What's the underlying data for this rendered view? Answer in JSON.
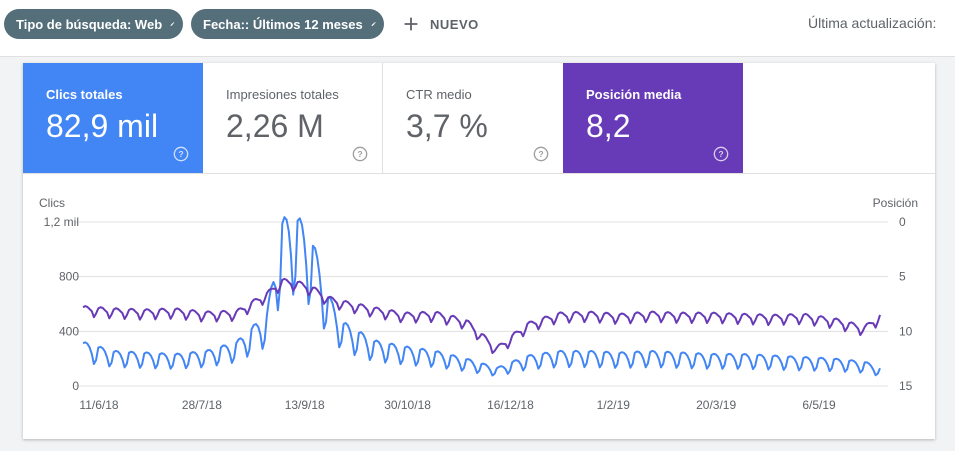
{
  "toolbar": {
    "chip_type_label": "Tipo de búsqueda: Web",
    "chip_date_label": "Fecha:: Últimos 12 meses",
    "new_label": "NUEVO",
    "last_update": "Última actualización: "
  },
  "metrics": {
    "clicks": {
      "label": "Clics totales",
      "value": "82,9 mil",
      "color": "#4285f4"
    },
    "impressions": {
      "label": "Impresiones totales",
      "value": "2,26 M"
    },
    "ctr": {
      "label": "CTR medio",
      "value": "3,7 %"
    },
    "position": {
      "label": "Posición media",
      "value": "8,2",
      "color": "#673ab7"
    }
  },
  "chart_data": {
    "type": "line",
    "y_left_label": "Clics",
    "y_right_label": "Posición",
    "y_left_ticks": [
      "1,2 mil",
      "800",
      "400",
      "0"
    ],
    "y_left_tick_values": [
      1200,
      800,
      400,
      0
    ],
    "y_left_range": [
      0,
      1200
    ],
    "y_right_ticks": [
      "0",
      "5",
      "10",
      "15"
    ],
    "y_right_tick_values": [
      0,
      5,
      10,
      15
    ],
    "y_right_range": [
      0,
      15
    ],
    "y_right_inverted": true,
    "x_ticks": [
      "11/6/18",
      "28/7/18",
      "13/9/18",
      "30/10/18",
      "16/12/18",
      "1/2/19",
      "20/3/19",
      "6/5/19"
    ],
    "x_start": "2018-06-11",
    "x_end": "2019-06-10",
    "grid": true,
    "series": [
      {
        "name": "Clics",
        "axis": "left",
        "color": "#4285f4",
        "points": [
          [
            "2018-06-11",
            290
          ],
          [
            "2018-06-25",
            230
          ],
          [
            "2018-07-09",
            220
          ],
          [
            "2018-07-23",
            210
          ],
          [
            "2018-08-06",
            230
          ],
          [
            "2018-08-20",
            290
          ],
          [
            "2018-09-03",
            480
          ],
          [
            "2018-09-10",
            1100
          ],
          [
            "2018-09-17",
            1120
          ],
          [
            "2018-09-24",
            950
          ],
          [
            "2018-10-01",
            600
          ],
          [
            "2018-10-08",
            420
          ],
          [
            "2018-10-22",
            300
          ],
          [
            "2018-11-05",
            260
          ],
          [
            "2018-11-19",
            230
          ],
          [
            "2018-12-03",
            180
          ],
          [
            "2018-12-17",
            120
          ],
          [
            "2018-12-31",
            200
          ],
          [
            "2019-01-14",
            230
          ],
          [
            "2019-01-28",
            230
          ],
          [
            "2019-02-11",
            220
          ],
          [
            "2019-02-25",
            230
          ],
          [
            "2019-03-11",
            220
          ],
          [
            "2019-03-25",
            210
          ],
          [
            "2019-04-08",
            210
          ],
          [
            "2019-04-22",
            200
          ],
          [
            "2019-05-06",
            190
          ],
          [
            "2019-05-20",
            180
          ],
          [
            "2019-06-03",
            160
          ],
          [
            "2019-06-10",
            120
          ]
        ]
      },
      {
        "name": "Posición",
        "axis": "right",
        "color": "#673ab7",
        "points": [
          [
            "2018-06-11",
            7.8
          ],
          [
            "2018-06-25",
            8.0
          ],
          [
            "2018-07-09",
            8.1
          ],
          [
            "2018-07-23",
            8.0
          ],
          [
            "2018-08-06",
            8.3
          ],
          [
            "2018-08-20",
            8.2
          ],
          [
            "2018-09-03",
            6.5
          ],
          [
            "2018-09-10",
            5.3
          ],
          [
            "2018-09-17",
            5.5
          ],
          [
            "2018-09-24",
            6.0
          ],
          [
            "2018-10-01",
            6.9
          ],
          [
            "2018-10-08",
            7.3
          ],
          [
            "2018-10-22",
            7.9
          ],
          [
            "2018-11-05",
            8.4
          ],
          [
            "2018-11-19",
            8.3
          ],
          [
            "2018-12-03",
            9.0
          ],
          [
            "2018-12-17",
            11.5
          ],
          [
            "2018-12-31",
            9.3
          ],
          [
            "2019-01-14",
            8.4
          ],
          [
            "2019-01-28",
            8.3
          ],
          [
            "2019-02-11",
            8.5
          ],
          [
            "2019-02-25",
            8.3
          ],
          [
            "2019-03-11",
            8.4
          ],
          [
            "2019-03-25",
            8.4
          ],
          [
            "2019-04-08",
            8.5
          ],
          [
            "2019-04-22",
            8.6
          ],
          [
            "2019-05-06",
            8.5
          ],
          [
            "2019-05-20",
            8.9
          ],
          [
            "2019-06-03",
            9.6
          ],
          [
            "2019-06-10",
            8.5
          ]
        ]
      }
    ]
  }
}
